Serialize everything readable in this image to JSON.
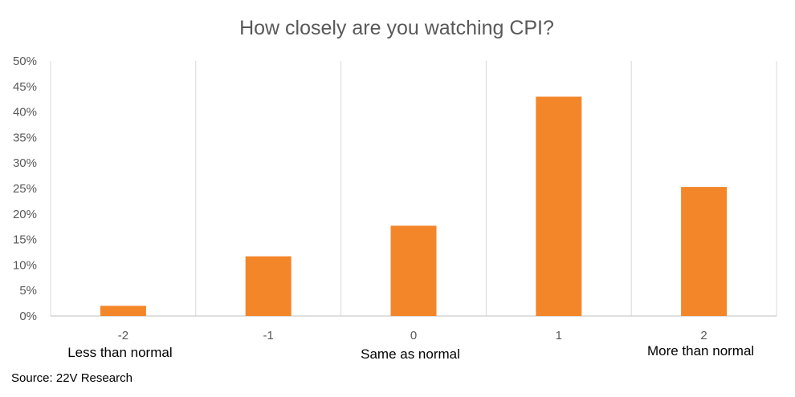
{
  "chart_data": {
    "type": "bar",
    "title": "How closely are you watching CPI?",
    "categories": [
      "-2",
      "-1",
      "0",
      "1",
      "2"
    ],
    "values": [
      2.0,
      11.7,
      17.7,
      43.0,
      25.3
    ],
    "value_unit": "%",
    "ylim": [
      0,
      50
    ],
    "yticks": [
      "0%",
      "5%",
      "10%",
      "15%",
      "20%",
      "25%",
      "30%",
      "35%",
      "40%",
      "45%",
      "50%"
    ],
    "ytick_values": [
      0,
      5,
      10,
      15,
      20,
      25,
      30,
      35,
      40,
      45,
      50
    ],
    "category_descriptions": [
      {
        "category_index": 0,
        "text": "Less than normal"
      },
      {
        "category_index": 2,
        "text": "Same as normal"
      },
      {
        "category_index": 4,
        "text": "More than normal"
      }
    ],
    "bar_color": "#F4862A",
    "grid": "vertical category separators",
    "legend": "none"
  },
  "footer": {
    "source": "Source: 22V Research"
  }
}
